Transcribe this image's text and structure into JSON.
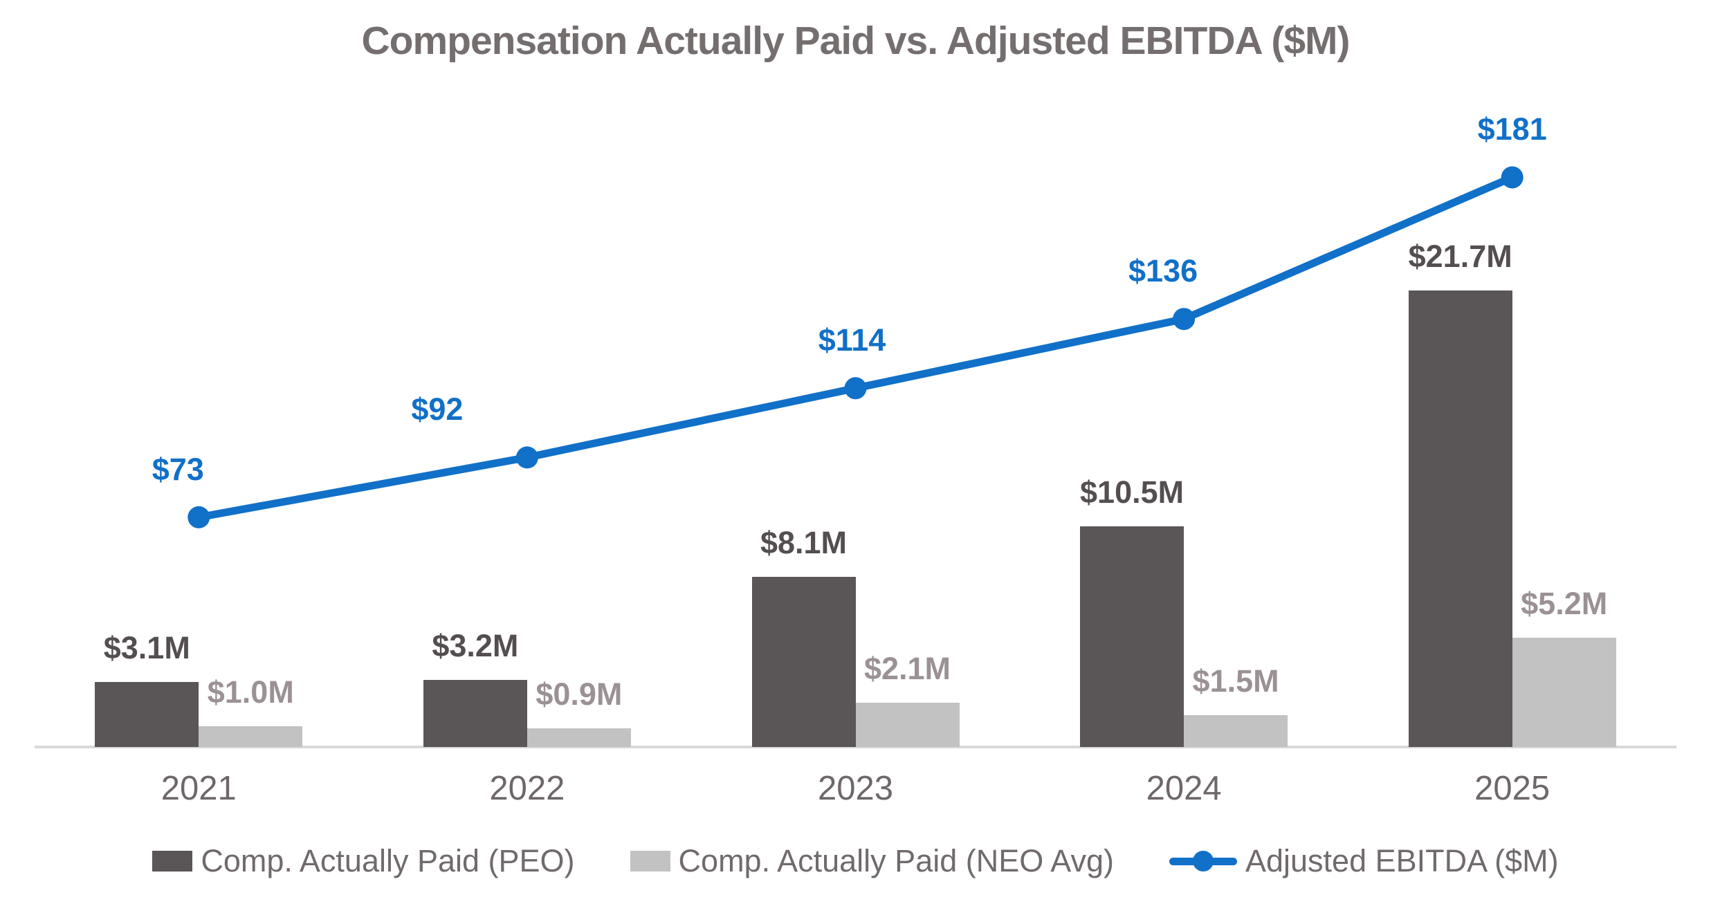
{
  "chart": {
    "title": "Compensation Actually Paid vs. Adjusted EBITDA ($M)"
  },
  "chart_data": {
    "type": "combo-bar-line",
    "title": "Compensation Actually Paid vs. Adjusted EBITDA ($M)",
    "categories": [
      "2021",
      "2022",
      "2023",
      "2024",
      "2025"
    ],
    "series": [
      {
        "name": "Comp. Actually Paid (PEO)",
        "type": "bar",
        "axis": "primary",
        "unit": "$M",
        "values": [
          3.1,
          3.2,
          8.1,
          10.5,
          21.7
        ],
        "labels": [
          "$3.1M",
          "$3.2M",
          "$8.1M",
          "$10.5M",
          "$21.7M"
        ],
        "color": "#5a5556",
        "label_color": "#544e50"
      },
      {
        "name": "Comp. Actually Paid (NEO Avg)",
        "type": "bar",
        "axis": "primary",
        "unit": "$M",
        "values": [
          1.0,
          0.9,
          2.1,
          1.5,
          5.2
        ],
        "labels": [
          "$1.0M",
          "$0.9M",
          "$2.1M",
          "$1.5M",
          "$5.2M"
        ],
        "color": "#c2c2c2",
        "label_color": "#9b9194"
      },
      {
        "name": "Adjusted EBITDA ($M)",
        "type": "line",
        "axis": "secondary",
        "unit": "$M",
        "values": [
          73,
          92,
          114,
          136,
          181
        ],
        "labels": [
          "$73",
          "$92",
          "$114",
          "$136",
          "$181"
        ],
        "color": "#1170c8",
        "label_color": "#1170c8"
      }
    ],
    "bar_axis": {
      "min": 0,
      "max": 30,
      "visible": false
    },
    "line_axis": {
      "min": 0,
      "max": 220,
      "visible": false
    },
    "grid": false,
    "legend_position": "bottom",
    "colors": {
      "title": "#756e6f",
      "x_labels": "#6e676a",
      "legend_text": "#716a6c",
      "axis_line": "#d9d9d9",
      "background": "#ffffff"
    }
  }
}
